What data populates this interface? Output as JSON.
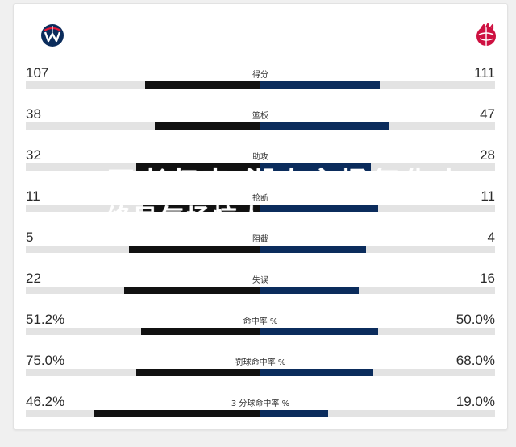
{
  "teams": {
    "left": {
      "logo_icon": "wizards-logo-icon",
      "color": "#0b2c5c"
    },
    "right": {
      "logo_icon": "raptors-logo-icon",
      "color": "#ce1141"
    }
  },
  "colors": {
    "left_bar": "#111111",
    "right_bar": "#0b2c5c",
    "track": "#e3e3e3"
  },
  "stats": [
    {
      "label": "得分",
      "left": "107",
      "right": "111",
      "left_fraction": 0.49,
      "right_fraction": 0.51
    },
    {
      "label": "篮板",
      "left": "38",
      "right": "47",
      "left_fraction": 0.45,
      "right_fraction": 0.55
    },
    {
      "label": "助攻",
      "left": "32",
      "right": "28",
      "left_fraction": 0.53,
      "right_fraction": 0.47
    },
    {
      "label": "抢断",
      "left": "11",
      "right": "11",
      "left_fraction": 0.5,
      "right_fraction": 0.5
    },
    {
      "label": "阻截",
      "left": "5",
      "right": "4",
      "left_fraction": 0.56,
      "right_fraction": 0.45
    },
    {
      "label": "失误",
      "left": "22",
      "right": "16",
      "left_fraction": 0.58,
      "right_fraction": 0.42
    },
    {
      "label": "命中率 %",
      "left": "51.2%",
      "right": "50.0%",
      "left_fraction": 0.51,
      "right_fraction": 0.5
    },
    {
      "label": "罚球命中率 %",
      "left": "75.0%",
      "right": "68.0%",
      "left_fraction": 0.53,
      "right_fraction": 0.48
    },
    {
      "label": "3 分球命中率 %",
      "left": "46.2%",
      "right": "19.0%",
      "left_fraction": 0.71,
      "right_fraction": 0.29
    }
  ],
  "overlay": {
    "line1": "王者归来·湖人主场复仇大",
    "line2": "终局气场惊人"
  }
}
